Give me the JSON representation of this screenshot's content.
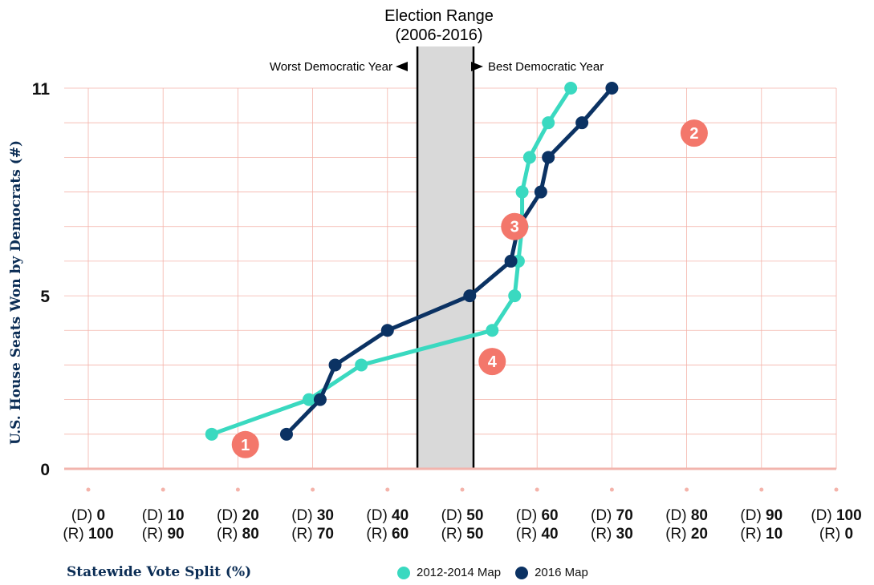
{
  "colors": {
    "series_2012": "#3ad9c0",
    "series_2016": "#0b3263",
    "grid": "#f4b3aa",
    "zero_line": "#f2b4ad",
    "band": "#d9d9d9",
    "annotation": "#f3776b",
    "axis_title": "#0b2d55"
  },
  "range_annotation": {
    "title_line1": "Election Range",
    "title_line2": "(2006-2016)",
    "left_label": "Worst Democratic Year",
    "right_label": "Best Democratic Year",
    "x_start": 44,
    "x_end": 51.5
  },
  "callouts": [
    {
      "label": "1",
      "x": 21,
      "y": 0.7
    },
    {
      "label": "2",
      "x": 81,
      "y": 9.7
    },
    {
      "label": "3",
      "x": 57,
      "y": 7.0
    },
    {
      "label": "4",
      "x": 54,
      "y": 3.1
    }
  ],
  "legend": {
    "items": [
      {
        "label": "2012-2014 Map",
        "color": "#3ad9c0"
      },
      {
        "label": "2016 Map",
        "color": "#0b3263"
      }
    ]
  },
  "chart_data": {
    "type": "line",
    "title": "",
    "xlabel": "Statewide Vote Split (%)",
    "ylabel": "U.S. House Seats Won by Democrats (#)",
    "xlim": [
      0,
      100
    ],
    "ylim": [
      0,
      11
    ],
    "y_ticks": [
      "0",
      "5",
      "11"
    ],
    "x_ticks": [
      {
        "d": "0",
        "r": "100"
      },
      {
        "d": "10",
        "r": "90"
      },
      {
        "d": "20",
        "r": "80"
      },
      {
        "d": "30",
        "r": "70"
      },
      {
        "d": "40",
        "r": "60"
      },
      {
        "d": "50",
        "r": "50"
      },
      {
        "d": "60",
        "r": "40"
      },
      {
        "d": "70",
        "r": "30"
      },
      {
        "d": "80",
        "r": "20"
      },
      {
        "d": "90",
        "r": "10"
      },
      {
        "d": "100",
        "r": "0"
      }
    ],
    "d_prefix": "(D)",
    "r_prefix": "(R)",
    "grid": true,
    "legend_position": "bottom",
    "series": [
      {
        "name": "2012-2014 Map",
        "x": [
          16.5,
          29.5,
          36.5,
          54,
          57,
          57.5,
          58,
          58,
          59,
          61.5,
          64.5
        ],
        "y": [
          1,
          2,
          3,
          4,
          5,
          6,
          7,
          8,
          9,
          10,
          11
        ]
      },
      {
        "name": "2016 Map",
        "x": [
          26.5,
          31,
          33,
          40,
          51,
          56.5,
          57.5,
          60.5,
          61.5,
          66,
          70
        ],
        "y": [
          1,
          2,
          3,
          4,
          5,
          6,
          7,
          8,
          9,
          10,
          11
        ]
      }
    ]
  }
}
